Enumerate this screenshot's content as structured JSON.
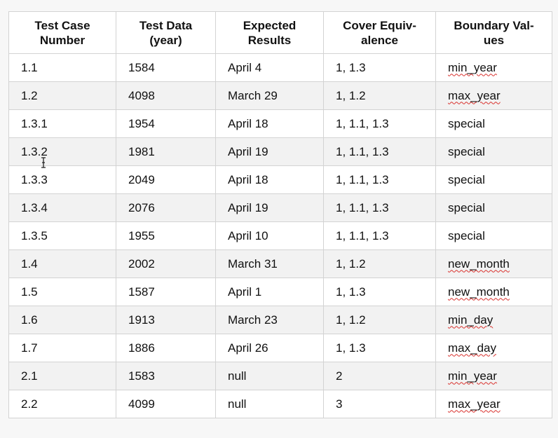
{
  "table": {
    "headers": [
      "Test Case Number",
      "Test Data (year)",
      "Expected Results",
      "Cover Equiv-alence",
      "Boundary Val-ues"
    ],
    "header_lines": [
      [
        "Test Case",
        "Number"
      ],
      [
        "Test Data",
        "(year)"
      ],
      [
        "Expected",
        "Results"
      ],
      [
        "Cover Equiv-",
        "alence"
      ],
      [
        "Boundary Val-",
        "ues"
      ]
    ],
    "rows": [
      [
        "1.1",
        "1584",
        "April 4",
        "1, 1.3",
        "min_year"
      ],
      [
        "1.2",
        "4098",
        "March 29",
        "1, 1.2",
        "max_year"
      ],
      [
        "1.3.1",
        "1954",
        "April 18",
        "1, 1.1, 1.3",
        "special"
      ],
      [
        "1.3.2",
        "1981",
        "April 19",
        "1, 1.1, 1.3",
        "special"
      ],
      [
        "1.3.3",
        "2049",
        "April 18",
        "1, 1.1, 1.3",
        "special"
      ],
      [
        "1.3.4",
        "2076",
        "April 19",
        "1, 1.1, 1.3",
        "special"
      ],
      [
        "1.3.5",
        "1955",
        "April 10",
        "1, 1.1, 1.3",
        "special"
      ],
      [
        "1.4",
        "2002",
        "March 31",
        "1, 1.2",
        "new_month"
      ],
      [
        "1.5",
        "1587",
        "April 1",
        "1, 1.3",
        "new_month"
      ],
      [
        "1.6",
        "1913",
        "March 23",
        "1, 1.2",
        "min_day"
      ],
      [
        "1.7",
        "1886",
        "April 26",
        "1, 1.3",
        "max_day"
      ],
      [
        "2.1",
        "1583",
        "null",
        "2",
        "min_year"
      ],
      [
        "2.2",
        "4099",
        "null",
        "3",
        "max_year"
      ]
    ]
  },
  "spellcheck_flag_color": "#d9302c",
  "cursor_icon": "text-cursor-icon"
}
